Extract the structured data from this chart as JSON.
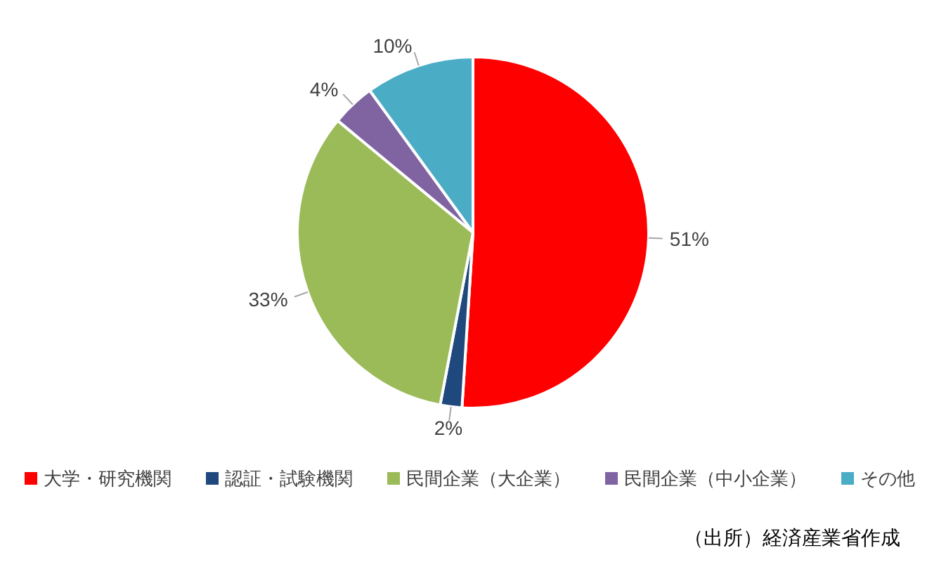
{
  "chart_data": {
    "type": "pie",
    "categories": [
      "大学・研究機関",
      "認証・試験機関",
      "民間企業（大企業）",
      "民間企業（中小企業）",
      "その他"
    ],
    "values": [
      51,
      2,
      33,
      4,
      10
    ],
    "colors": [
      "#ff0000",
      "#1f497d",
      "#9bbb59",
      "#8064a2",
      "#4bacc6"
    ],
    "value_labels": [
      "51%",
      "2%",
      "33%",
      "4%",
      "10%"
    ],
    "legend": "bottom",
    "annotations": [
      "（出所）経済産業省作成"
    ]
  }
}
